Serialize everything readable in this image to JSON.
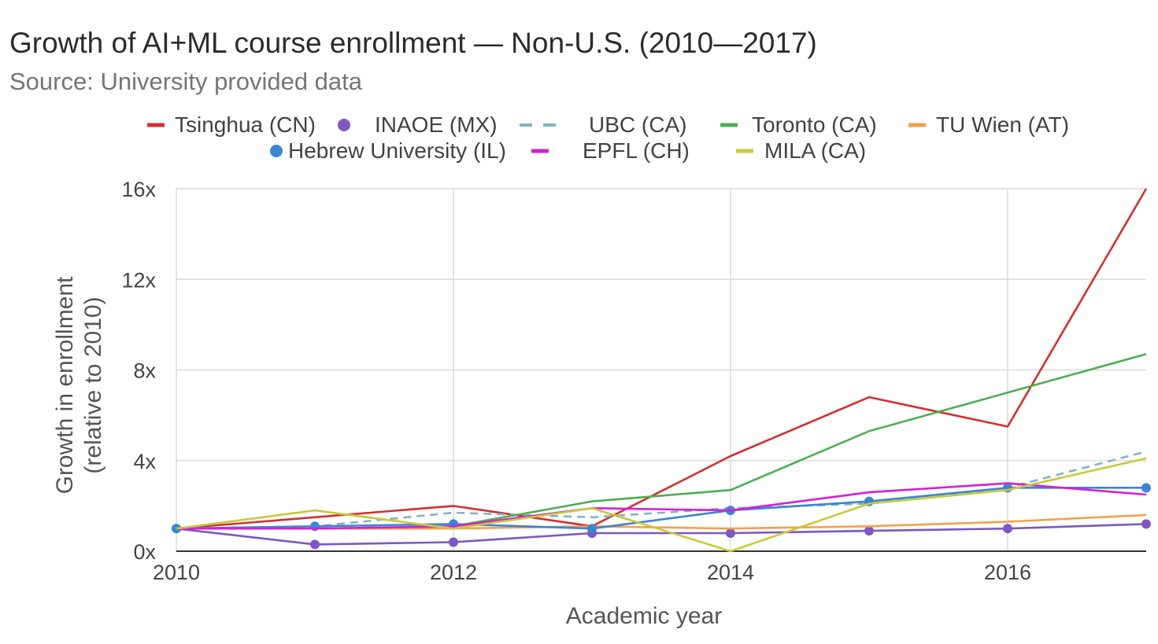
{
  "chart_data": {
    "type": "line",
    "title": "Growth of AI+ML course enrollment — Non-U.S. (2010—2017)",
    "subtitle": "Source: University provided data",
    "xlabel": "Academic year",
    "ylabel": [
      "Growth in enrollment",
      "(relative to 2010)"
    ],
    "xlim": [
      2010,
      2017
    ],
    "ylim": [
      0,
      16
    ],
    "x_ticks": [
      {
        "value": 2010,
        "label": "2010"
      },
      {
        "value": 2012,
        "label": "2012"
      },
      {
        "value": 2014,
        "label": "2014"
      },
      {
        "value": 2016,
        "label": "2016"
      }
    ],
    "y_ticks": [
      {
        "value": 0,
        "label": "0x"
      },
      {
        "value": 4,
        "label": "4x"
      },
      {
        "value": 8,
        "label": "8x"
      },
      {
        "value": 12,
        "label": "12x"
      },
      {
        "value": 16,
        "label": "16x"
      }
    ],
    "grid": true,
    "legend_position": "top",
    "series": [
      {
        "name": "Tsinghua (CN)",
        "color": "#d32f2f",
        "style": "solid",
        "markers": false,
        "legend_marker": "line",
        "x": [
          2010,
          2011,
          2012,
          2013,
          2014,
          2015,
          2016,
          2017
        ],
        "y": [
          1.0,
          1.5,
          2.0,
          1.1,
          4.2,
          6.8,
          5.5,
          16.0
        ]
      },
      {
        "name": "INAOE (MX)",
        "color": "#7e57c2",
        "style": "solid",
        "markers": true,
        "legend_marker": "dot",
        "x": [
          2010,
          2011,
          2012,
          2013,
          2014,
          2015,
          2016,
          2017
        ],
        "y": [
          1.0,
          0.3,
          0.4,
          0.8,
          0.8,
          0.9,
          1.0,
          1.2
        ]
      },
      {
        "name": "UBC (CA)",
        "color": "#80b4c4",
        "style": "dashed",
        "markers": false,
        "legend_marker": "dash",
        "x": [
          2010,
          2011,
          2012,
          2013,
          2014,
          2015,
          2016,
          2017
        ],
        "y": [
          1.0,
          1.1,
          1.7,
          1.5,
          1.9,
          2.1,
          2.8,
          4.4
        ]
      },
      {
        "name": "Toronto (CA)",
        "color": "#4caf50",
        "style": "solid",
        "markers": false,
        "legend_marker": "line",
        "x": [
          2010,
          2011,
          2012,
          2013,
          2014,
          2015,
          2016,
          2017
        ],
        "y": [
          1.0,
          1.0,
          1.1,
          2.2,
          2.7,
          5.3,
          7.0,
          8.7
        ]
      },
      {
        "name": "TU Wien (AT)",
        "color": "#f5a04a",
        "style": "solid",
        "markers": false,
        "legend_marker": "line",
        "x": [
          2010,
          2011,
          2012,
          2013,
          2014,
          2015,
          2016,
          2017
        ],
        "y": [
          1.0,
          1.0,
          1.0,
          1.1,
          1.0,
          1.1,
          1.3,
          1.6
        ]
      },
      {
        "name": "Hebrew University (IL)",
        "color": "#3a86d4",
        "style": "solid",
        "markers": true,
        "legend_marker": "dot",
        "x": [
          2010,
          2011,
          2012,
          2013,
          2014,
          2015,
          2016,
          2017
        ],
        "y": [
          1.0,
          1.1,
          1.2,
          1.0,
          1.8,
          2.2,
          2.8,
          2.8
        ]
      },
      {
        "name": "EPFL (CH)",
        "color": "#d61ed6",
        "style": "solid",
        "markers": false,
        "legend_marker": "line",
        "x": [
          2010,
          2011,
          2012,
          2013,
          2014,
          2015,
          2016,
          2017
        ],
        "y": [
          1.0,
          1.0,
          1.1,
          1.9,
          1.8,
          2.6,
          3.0,
          2.5
        ]
      },
      {
        "name": "MILA (CA)",
        "color": "#c9c93a",
        "style": "solid",
        "markers": false,
        "legend_marker": "line",
        "x": [
          2010,
          2011,
          2012,
          2013,
          2014,
          2015,
          2016,
          2017
        ],
        "y": [
          1.0,
          1.8,
          1.0,
          1.9,
          0.0,
          2.1,
          2.7,
          4.1
        ]
      }
    ]
  }
}
